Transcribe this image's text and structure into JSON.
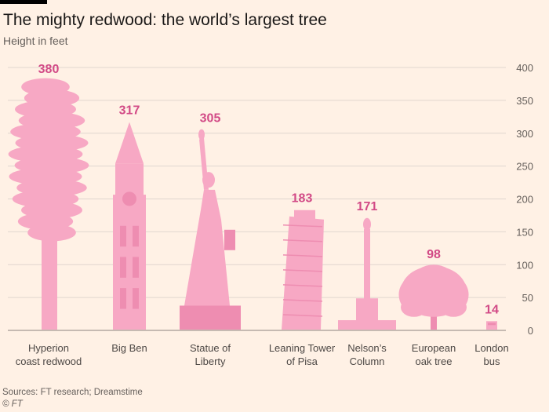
{
  "title": "The mighty redwood: the world’s largest tree",
  "subtitle": "Height in feet",
  "source": "Sources: FT research; Dreamstime",
  "credit": "© FT",
  "colors": {
    "background": "#fff1e5",
    "shape": "#f7a8c4",
    "shape_dark": "#ee8db1",
    "label": "#d24a86",
    "grid": "#e0d6cf"
  },
  "chart_data": {
    "type": "bar",
    "title": "The mighty redwood: the world’s largest tree",
    "ylabel": "Height in feet",
    "ylim": [
      0,
      400
    ],
    "yticks": [
      0,
      50,
      100,
      150,
      200,
      250,
      300,
      350,
      400
    ],
    "y_axis_side": "right",
    "grid": true,
    "categories": [
      {
        "lines": [
          "Hyperion",
          "coast redwood"
        ],
        "value": 380,
        "kind": "redwood"
      },
      {
        "lines": [
          "Big Ben"
        ],
        "value": 317,
        "kind": "clocktower"
      },
      {
        "lines": [
          "Statue of",
          "Liberty"
        ],
        "value": 305,
        "kind": "statue"
      },
      {
        "lines": [
          "Leaning Tower",
          "of Pisa"
        ],
        "value": 183,
        "kind": "pisa"
      },
      {
        "lines": [
          "Nelson’s",
          "Column"
        ],
        "value": 171,
        "kind": "column"
      },
      {
        "lines": [
          "European",
          "oak tree"
        ],
        "value": 98,
        "kind": "oak"
      },
      {
        "lines": [
          "London",
          "bus"
        ],
        "value": 14,
        "kind": "bus"
      }
    ]
  }
}
